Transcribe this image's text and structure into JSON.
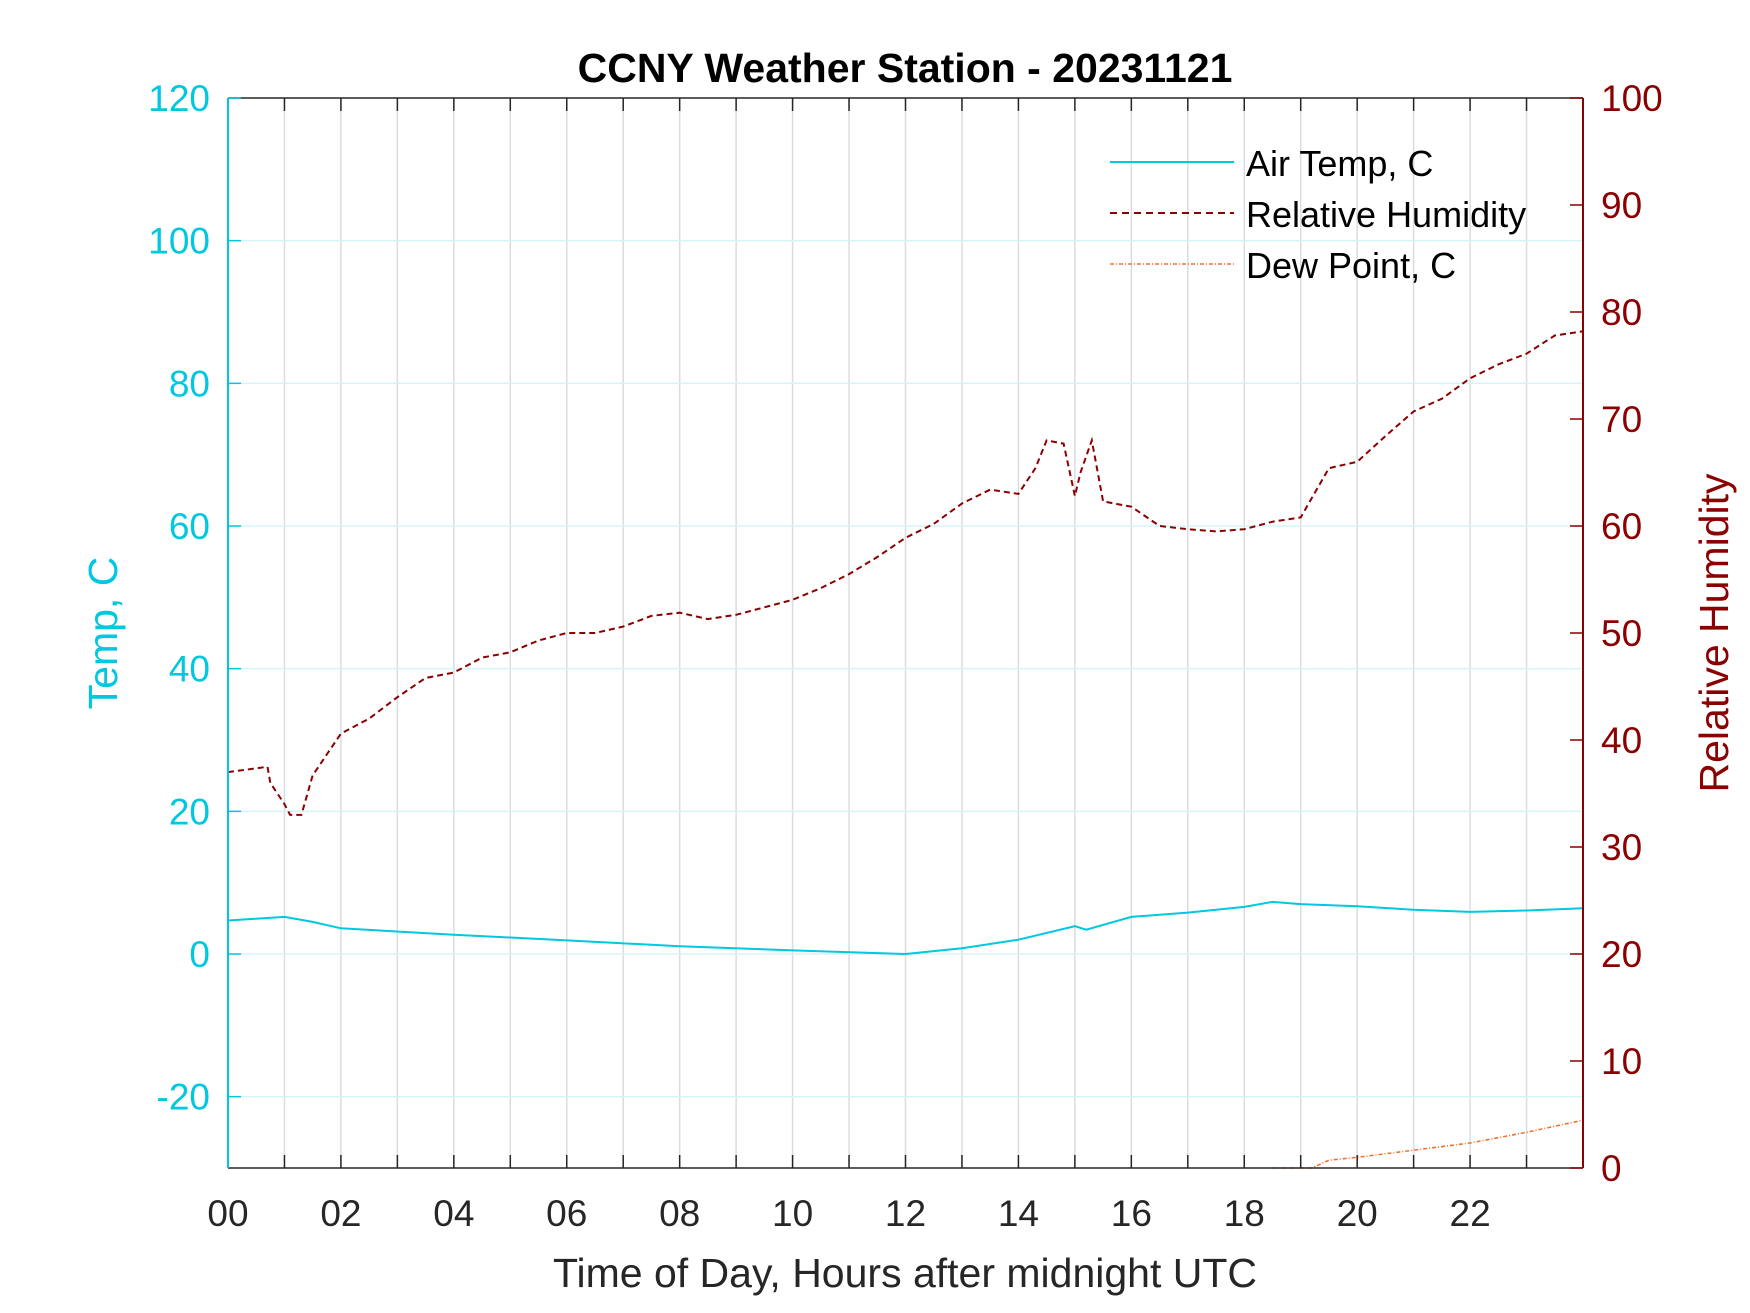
{
  "chart_data": {
    "type": "line",
    "title": "CCNY Weather Station - 20231121",
    "xlabel": "Time of Day, Hours after midnight UTC",
    "ylabel_left": "Temp, C",
    "ylabel_right": "Relative Humidity",
    "xlim": [
      0,
      24
    ],
    "ylim_left": [
      -30,
      120
    ],
    "ylim_right": [
      0,
      100
    ],
    "x_ticks": [
      0,
      2,
      4,
      6,
      8,
      10,
      12,
      14,
      16,
      18,
      20,
      22
    ],
    "x_tick_labels": [
      "00",
      "02",
      "04",
      "06",
      "08",
      "10",
      "12",
      "14",
      "16",
      "18",
      "20",
      "22"
    ],
    "y_left_ticks": [
      -20,
      0,
      20,
      40,
      60,
      80,
      100,
      120
    ],
    "y_right_ticks": [
      0,
      10,
      20,
      30,
      40,
      50,
      60,
      70,
      80,
      90,
      100
    ],
    "grid": true,
    "legend_position": "top-right",
    "colors": {
      "temp": "#00C8E0",
      "rh": "#8B0000",
      "dew": "#F07030",
      "axis": "#262626"
    },
    "series": [
      {
        "name": "Air Temp, C",
        "axis": "left",
        "style": "solid",
        "x": [
          0,
          1,
          1.5,
          2,
          4,
          6,
          8,
          10,
          12,
          13,
          14,
          15,
          15.2,
          16,
          17,
          18,
          18.5,
          19,
          20,
          21,
          22,
          23,
          24
        ],
        "y": [
          4.7,
          5.2,
          4.5,
          3.6,
          2.7,
          1.9,
          1.1,
          0.5,
          0,
          0.8,
          2,
          3.9,
          3.4,
          5.2,
          5.8,
          6.6,
          7.3,
          7,
          6.7,
          6.2,
          5.9,
          6.1,
          6.4
        ]
      },
      {
        "name": "Relative Humidity",
        "axis": "right",
        "style": "dashed",
        "x": [
          0,
          0.7,
          0.75,
          1,
          1.1,
          1.3,
          1.5,
          2,
          2.5,
          3,
          3.5,
          4,
          4.5,
          5,
          5.5,
          6,
          6.5,
          7,
          7.5,
          8,
          8.5,
          9,
          9.5,
          10,
          10.5,
          11,
          11.5,
          12,
          12.5,
          13,
          13.5,
          14,
          14.3,
          14.5,
          14.8,
          15,
          15.1,
          15.3,
          15.5,
          16,
          16.5,
          17,
          17.5,
          18,
          18.5,
          19,
          19.5,
          20,
          20.5,
          21,
          21.5,
          22,
          22.5,
          23,
          23.5,
          24
        ],
        "y": [
          37,
          37.5,
          36,
          34,
          33,
          33,
          36.7,
          40.6,
          42,
          44,
          45.8,
          46.3,
          47.7,
          48.2,
          49.3,
          50,
          50,
          50.6,
          51.6,
          51.9,
          51.3,
          51.7,
          52.4,
          53.1,
          54.2,
          55.5,
          57.1,
          58.9,
          60.2,
          62.1,
          63.4,
          63,
          65.4,
          68,
          67.7,
          62.8,
          65,
          68,
          62.3,
          61.8,
          60,
          59.7,
          59.5,
          59.7,
          60.4,
          60.8,
          65.4,
          66,
          68.4,
          70.7,
          71.9,
          73.8,
          75.1,
          76.1,
          77.8,
          78.2
        ]
      },
      {
        "name": "Dew Point, C",
        "axis": "left",
        "style": "dashdot",
        "x": [
          18.5,
          19.2,
          19.5,
          20,
          21,
          22,
          23,
          24
        ],
        "y": [
          -30,
          -30,
          -28.9,
          -28.5,
          -27.5,
          -26.5,
          -25,
          -23.3
        ]
      }
    ]
  }
}
